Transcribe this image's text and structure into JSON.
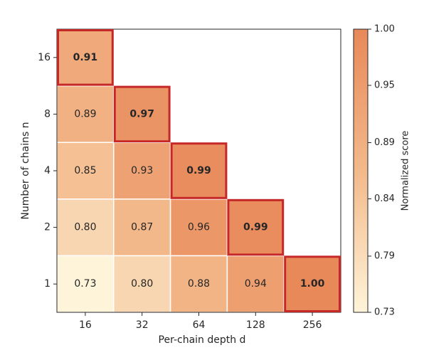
{
  "chart_data": {
    "type": "heatmap",
    "x_label": "Per-chain depth d",
    "y_label": "Number of chains n",
    "colorbar_label": "Normalized score",
    "x_categories": [
      16,
      32,
      64,
      128,
      256
    ],
    "y_categories": [
      1,
      2,
      4,
      8,
      16
    ],
    "values": [
      [
        0.73,
        0.8,
        0.88,
        0.94,
        1.0
      ],
      [
        0.8,
        0.87,
        0.96,
        0.99,
        null
      ],
      [
        0.85,
        0.93,
        0.99,
        null,
        null
      ],
      [
        0.89,
        0.97,
        null,
        null,
        null
      ],
      [
        0.91,
        null,
        null,
        null,
        null
      ]
    ],
    "value_labels": [
      [
        "0.73",
        "0.80",
        "0.88",
        "0.94",
        "1.00"
      ],
      [
        "0.80",
        "0.87",
        "0.96",
        "0.99",
        null
      ],
      [
        "0.85",
        "0.93",
        "0.99",
        null,
        null
      ],
      [
        "0.89",
        "0.97",
        null,
        null,
        null
      ],
      [
        "0.91",
        null,
        null,
        null,
        null
      ]
    ],
    "clim": [
      0.733,
      1.0
    ],
    "cticks": [
      {
        "value": 0.733,
        "label": "0.73"
      },
      {
        "value": 0.786,
        "label": "0.79"
      },
      0.84,
      {
        "value": 0.893,
        "label": "0.89"
      },
      {
        "value": 0.947,
        "label": "0.95"
      },
      {
        "value": 1.0,
        "label": "1.00"
      }
    ],
    "colormap": [
      "#fef4d9",
      "#f3b98a",
      "#e8895a"
    ],
    "highlight": "row-max",
    "highlight_color": "#c62828"
  }
}
